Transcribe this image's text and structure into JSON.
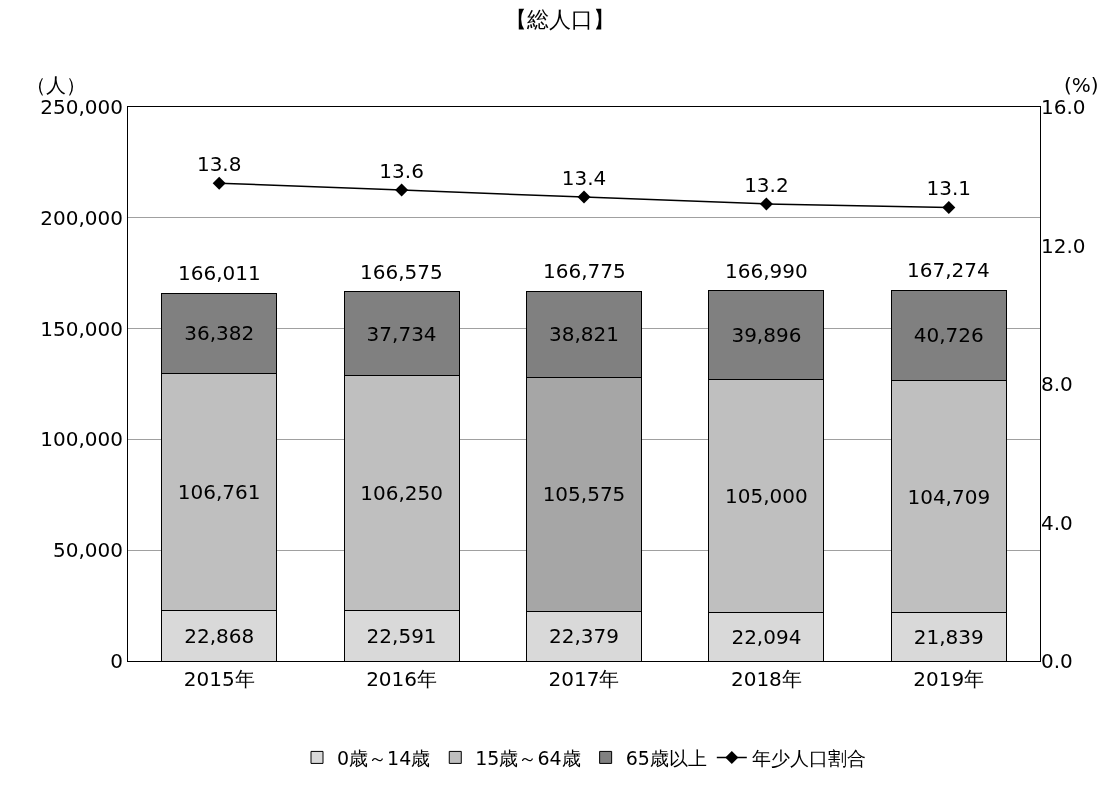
{
  "chart_data": {
    "type": "bar",
    "title": "【総人口】",
    "ylabel": "（人）",
    "y2label": "(%)",
    "categories": [
      "2015年",
      "2016年",
      "2017年",
      "2018年",
      "2019年"
    ],
    "stacked": true,
    "series": [
      {
        "name": "0歳～14歳",
        "color": "#d9d9d9",
        "values": [
          22868,
          22591,
          22379,
          22094,
          21839
        ],
        "value_labels": [
          "22,868",
          "22,591",
          "22,379",
          "22,094",
          "21,839"
        ]
      },
      {
        "name": "15歳～64歳",
        "color": "#bfbfbf",
        "colors": [
          "#bfbfbf",
          "#bfbfbf",
          "#a6a6a6",
          "#bfbfbf",
          "#bfbfbf"
        ],
        "values": [
          106761,
          106250,
          105575,
          105000,
          104709
        ],
        "value_labels": [
          "106,761",
          "106,250",
          "105,575",
          "105,000",
          "104,709"
        ]
      },
      {
        "name": "65歳以上",
        "color": "#808080",
        "values": [
          36382,
          37734,
          38821,
          39896,
          40726
        ],
        "value_labels": [
          "36,382",
          "37,734",
          "38,821",
          "39,896",
          "40,726"
        ]
      },
      {
        "name": "年少人口割合",
        "type": "line",
        "axis": "y2",
        "color": "#000000",
        "marker": "diamond",
        "values": [
          13.8,
          13.6,
          13.4,
          13.2,
          13.1
        ],
        "value_labels": [
          "13.8",
          "13.6",
          "13.4",
          "13.2",
          "13.1"
        ]
      }
    ],
    "totals": [
      "166,011",
      "166,575",
      "166,775",
      "166,990",
      "167,274"
    ],
    "ylim": [
      0,
      250000
    ],
    "yticks": [
      0,
      {
        "value": 50000,
        "label": "50,000"
      },
      {
        "value": 100000,
        "label": "100,000"
      },
      {
        "value": 150000,
        "label": "150,000"
      },
      {
        "value": 200000,
        "label": "200,000"
      },
      {
        "value": 250000,
        "label": "250,000"
      }
    ],
    "y2lim": [
      0,
      16
    ],
    "y2ticks": [
      {
        "value": 0,
        "label": "0.0"
      },
      {
        "value": 4,
        "label": "4.0"
      },
      {
        "value": 8,
        "label": "8.0"
      },
      {
        "value": 12,
        "label": "12.0"
      },
      {
        "value": 16,
        "label": "16.0"
      }
    ],
    "grid": "y",
    "legend": "bottom"
  }
}
